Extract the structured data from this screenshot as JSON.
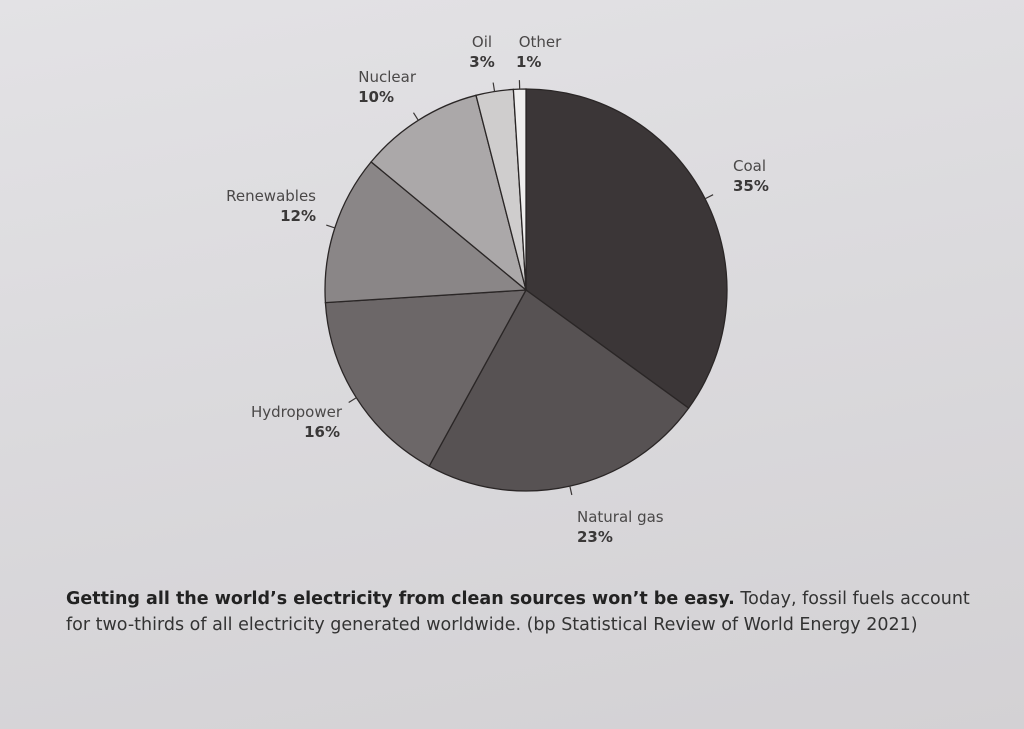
{
  "chart_data": {
    "type": "pie",
    "title": "",
    "slices": [
      {
        "label": "Coal",
        "value": 35,
        "display": "35%",
        "color": "#3b3637"
      },
      {
        "label": "Natural gas",
        "value": 23,
        "display": "23%",
        "color": "#575253"
      },
      {
        "label": "Hydropower",
        "value": 16,
        "display": "16%",
        "color": "#6c6768"
      },
      {
        "label": "Renewables",
        "value": 12,
        "display": "12%",
        "color": "#8a8687"
      },
      {
        "label": "Nuclear",
        "value": 10,
        "display": "10%",
        "color": "#aba8a9"
      },
      {
        "label": "Oil",
        "value": 3,
        "display": "3%",
        "color": "#cfcdcd"
      },
      {
        "label": "Other",
        "value": 1,
        "display": "1%",
        "color": "#efeeee"
      }
    ],
    "start": "12 o'clock",
    "direction": "clockwise"
  },
  "caption": {
    "bold": "Getting all the world’s electricity from clean sources won’t be easy.",
    "text": " Today, fossil fuels account for two-thirds of all electricity generated worldwide. (bp Statistical Review of World Energy 2021)"
  }
}
